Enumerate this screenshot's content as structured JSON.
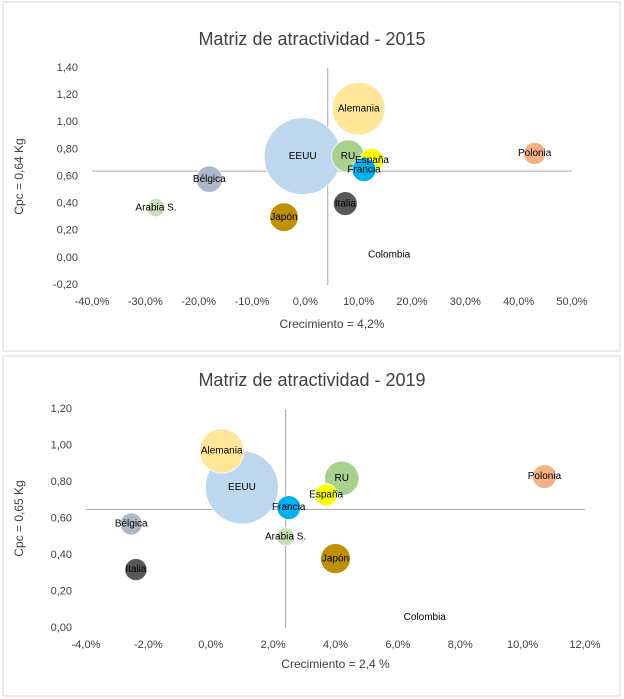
{
  "chart_data": [
    {
      "type": "bubble",
      "title": "Matriz de atractividad - 2015",
      "x_label": "Crecimiento = 4,2%",
      "y_label": "Cpc = 0,64 Kg",
      "categories": [
        "EEUU",
        "Alemania",
        "RU",
        "España",
        "Francia",
        "Polonia",
        "Bélgica",
        "Arabia S.",
        "Japón",
        "Italia",
        "Colombia"
      ],
      "x": [
        -0.5,
        10,
        8,
        12.5,
        11,
        43,
        -18,
        -28,
        -4,
        7.5,
        9.5
      ],
      "values": [
        0.75,
        1.1,
        0.75,
        0.72,
        0.65,
        0.77,
        0.58,
        0.37,
        0.3,
        0.4,
        0.05
      ],
      "sizes": [
        144,
        68,
        26,
        14,
        14,
        12,
        17,
        8,
        20,
        14,
        0.1
      ],
      "colors": [
        "#bdd7ee",
        "#ffe699",
        "#a9d18e",
        "#ffff00",
        "#00b0f0",
        "#f4b183",
        "#acb9ca",
        "#c5e0b4",
        "#bf9000",
        "#595959",
        "#404040"
      ],
      "xlim": [
        -40,
        50
      ],
      "xticks": [
        {
          "value": -40,
          "label": "-40,0%"
        },
        {
          "value": -30,
          "label": "-30,0%"
        },
        {
          "value": -20,
          "label": "-20,0%"
        },
        {
          "value": -10,
          "label": "-10,0%"
        },
        {
          "value": 0,
          "label": "0,0%"
        },
        {
          "value": 10,
          "label": "10,0%"
        },
        {
          "value": 20,
          "label": "20,0%"
        },
        {
          "value": 30,
          "label": "30,0%"
        },
        {
          "value": 40,
          "label": "40,0%"
        },
        {
          "value": 50,
          "label": "50,0%"
        }
      ],
      "ylim": [
        -0.2,
        1.4
      ],
      "yticks": [
        {
          "value": -0.2,
          "label": "-0,20"
        },
        {
          "value": 0,
          "label": "0,00"
        },
        {
          "value": 0.2,
          "label": "0,20"
        },
        {
          "value": 0.4,
          "label": "0,40"
        },
        {
          "value": 0.6,
          "label": "0,60"
        },
        {
          "value": 0.8,
          "label": "0,80"
        },
        {
          "value": 1.0,
          "label": "1,00"
        },
        {
          "value": 1.2,
          "label": "1,20"
        },
        {
          "value": 1.4,
          "label": "1,40"
        }
      ],
      "reference_lines": {
        "x": 4.2,
        "y": 0.64
      }
    },
    {
      "type": "bubble",
      "title": "Matriz de atractividad - 2019",
      "x_label": "Crecimiento = 2,4 %",
      "y_label": "Cpc = 0,65 Kg",
      "categories": [
        "EEUU",
        "Alemania",
        "RU",
        "España",
        "Francia",
        "Polonia",
        "Bélgica",
        "Arabia S.",
        "Japón",
        "Italia",
        "Colombia"
      ],
      "x": [
        1.0,
        0.35,
        4.2,
        3.7,
        2.5,
        10.7,
        -2.55,
        2.4,
        4.0,
        -2.4,
        5.8
      ],
      "values": [
        0.77,
        0.97,
        0.82,
        0.73,
        0.66,
        0.83,
        0.57,
        0.5,
        0.38,
        0.32,
        0.08
      ],
      "sizes": [
        130,
        48,
        29,
        12,
        14,
        14,
        12,
        8,
        22,
        12,
        0.1
      ],
      "colors": [
        "#bdd7ee",
        "#ffe699",
        "#a9d18e",
        "#ffff00",
        "#00b0f0",
        "#f4b183",
        "#acb9ca",
        "#c5e0b4",
        "#bf9000",
        "#595959",
        "#404040"
      ],
      "xlim": [
        -4,
        12
      ],
      "xticks": [
        {
          "value": -4,
          "label": "-4,0%"
        },
        {
          "value": -2,
          "label": "-2,0%"
        },
        {
          "value": 0,
          "label": "0,0%"
        },
        {
          "value": 2,
          "label": "2,0%"
        },
        {
          "value": 4,
          "label": "4,0%"
        },
        {
          "value": 6,
          "label": "6,0%"
        },
        {
          "value": 8,
          "label": "8,0%"
        },
        {
          "value": 10,
          "label": "10,0%"
        },
        {
          "value": 12,
          "label": "12,0%"
        }
      ],
      "ylim": [
        0,
        1.2
      ],
      "yticks": [
        {
          "value": 0,
          "label": "0,00"
        },
        {
          "value": 0.2,
          "label": "0,20"
        },
        {
          "value": 0.4,
          "label": "0,40"
        },
        {
          "value": 0.6,
          "label": "0,60"
        },
        {
          "value": 0.8,
          "label": "0,80"
        },
        {
          "value": 1.0,
          "label": "1,00"
        },
        {
          "value": 1.2,
          "label": "1,20"
        }
      ],
      "reference_lines": {
        "x": 2.4,
        "y": 0.65
      }
    }
  ]
}
